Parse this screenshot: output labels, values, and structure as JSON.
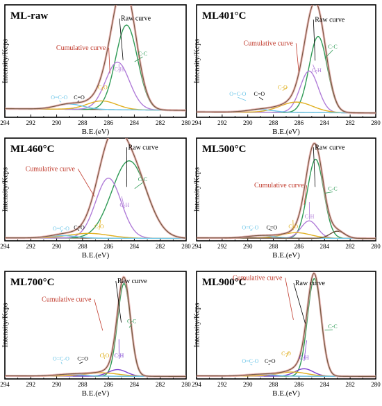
{
  "chart_data": [
    {
      "type": "line",
      "title": "ML-raw",
      "xlabel": "B.E.(eV)",
      "ylabel": "Intensity/Kcps",
      "xlim": [
        294,
        280
      ],
      "x_ticks": [
        "294",
        "292",
        "290",
        "288",
        "286",
        "284",
        "282",
        "280"
      ],
      "background": 8,
      "ymax": 130,
      "components": [
        {
          "name": "C-C",
          "center": 284.6,
          "height": 98,
          "width": 1.2,
          "color": "#2e9a55"
        },
        {
          "name": "C-H",
          "center": 285.3,
          "height": 55,
          "width": 1.3,
          "color": "#b07cd8"
        },
        {
          "name": "C-O",
          "center": 286.5,
          "height": 10,
          "width": 1.6,
          "color": "#e0b020"
        },
        {
          "name": "O=C-O",
          "center": 289.0,
          "height": 6,
          "width": 1.5,
          "color": "#6cc6e8"
        }
      ],
      "annotations": [
        {
          "label": "Raw curve",
          "color": "#000000",
          "main": true
        },
        {
          "label": "Cumulative curve",
          "color": "#c0392b",
          "main": true
        },
        {
          "label": "C-C",
          "color": "#2e9a55"
        },
        {
          "label": "C-H",
          "color": "#b07cd8"
        },
        {
          "label": "C-O",
          "color": "#e0b020"
        },
        {
          "label": "C=O",
          "color": "#000000"
        },
        {
          "label": "O=C-O",
          "color": "#6cc6e8"
        }
      ]
    },
    {
      "type": "line",
      "title": "ML401°C",
      "xlabel": "B.E.(eV)",
      "ylabel": "Intensity/Kcps",
      "xlim": [
        294,
        280
      ],
      "x_ticks": [
        "294",
        "292",
        "290",
        "288",
        "286",
        "284",
        "282",
        "280"
      ],
      "background": 5,
      "ymax": 130,
      "components": [
        {
          "name": "C-C",
          "center": 284.5,
          "height": 88,
          "width": 1.0,
          "color": "#2e9a55"
        },
        {
          "name": "C-H",
          "center": 285.2,
          "height": 48,
          "width": 1.0,
          "color": "#b07cd8"
        },
        {
          "name": "C-O",
          "center": 286.2,
          "height": 12,
          "width": 1.8,
          "color": "#e0b020"
        },
        {
          "name": "O=C-O",
          "center": 289.0,
          "height": 3,
          "width": 1.5,
          "color": "#6cc6e8"
        }
      ],
      "annotations": [
        {
          "label": "Raw curve",
          "color": "#000000",
          "main": true
        },
        {
          "label": "Cumulative curve",
          "color": "#c0392b",
          "main": true
        },
        {
          "label": "C-C",
          "color": "#2e9a55"
        },
        {
          "label": "C-H",
          "color": "#b07cd8"
        },
        {
          "label": "C-O",
          "color": "#e0b020"
        },
        {
          "label": "C=O",
          "color": "#000000"
        },
        {
          "label": "O=C-O",
          "color": "#6cc6e8"
        }
      ]
    },
    {
      "type": "line",
      "title": "ML460°C",
      "xlabel": "B.E.(eV)",
      "ylabel": "Intensity/Kcps",
      "xlim": [
        294,
        280
      ],
      "x_ticks": [
        "294",
        "292",
        "290",
        "288",
        "286",
        "284",
        "282",
        "280"
      ],
      "background": 3,
      "ymax": 130,
      "components": [
        {
          "name": "C-C",
          "center": 284.4,
          "height": 98,
          "width": 1.9,
          "color": "#2e9a55"
        },
        {
          "name": "C-H",
          "center": 286.0,
          "height": 76,
          "width": 1.4,
          "color": "#b07cd8"
        },
        {
          "name": "C-O",
          "center": 287.5,
          "height": 6,
          "width": 2.2,
          "color": "#e0b020"
        },
        {
          "name": "O=C-O",
          "center": 289.5,
          "height": 3,
          "width": 1.5,
          "color": "#6cc6e8"
        }
      ],
      "annotations": [
        {
          "label": "Raw curve",
          "color": "#000000",
          "main": true
        },
        {
          "label": "Cumulative curve",
          "color": "#c0392b",
          "main": true
        },
        {
          "label": "C-C",
          "color": "#2e9a55"
        },
        {
          "label": "C-H",
          "color": "#b07cd8"
        },
        {
          "label": "C-O",
          "color": "#e0b020"
        },
        {
          "label": "C=O",
          "color": "#000000"
        },
        {
          "label": "O=C-O",
          "color": "#6cc6e8"
        }
      ]
    },
    {
      "type": "line",
      "title": "ML500°C",
      "xlabel": "B.E.(eV)",
      "ylabel": "Intensity/Kcps",
      "xlim": [
        294,
        280
      ],
      "x_ticks": [
        "294",
        "292",
        "290",
        "288",
        "286",
        "284",
        "282",
        "280"
      ],
      "background": 3,
      "ymax": 130,
      "components": [
        {
          "name": "C-C",
          "center": 284.7,
          "height": 100,
          "width": 0.9,
          "color": "#2e9a55"
        },
        {
          "name": "C-H",
          "center": 285.2,
          "height": 22,
          "width": 0.9,
          "color": "#b07cd8"
        },
        {
          "name": "C-O",
          "center": 286.2,
          "height": 7,
          "width": 1.6,
          "color": "#e0b020"
        },
        {
          "name": "O=C-O",
          "center": 289.0,
          "height": 3,
          "width": 1.5,
          "color": "#6cc6e8"
        },
        {
          "name": "",
          "center": 283.0,
          "height": 9,
          "width": 0.8,
          "color": "#6b4f3a"
        }
      ],
      "annotations": [
        {
          "label": "Raw curve",
          "color": "#000000",
          "main": true
        },
        {
          "label": "Cumulative curve",
          "color": "#c0392b",
          "main": true
        },
        {
          "label": "C-C",
          "color": "#2e9a55"
        },
        {
          "label": "C-H",
          "color": "#b07cd8"
        },
        {
          "label": "C-O",
          "color": "#e0b020"
        },
        {
          "label": "C=O",
          "color": "#000000"
        },
        {
          "label": "O=C-O",
          "color": "#6cc6e8"
        }
      ]
    },
    {
      "type": "line",
      "title": "ML700°C",
      "xlabel": "B.E.(eV)",
      "ylabel": "Intensity/Kcps",
      "xlim": [
        294,
        280
      ],
      "x_ticks": [
        "294",
        "292",
        "290",
        "288",
        "286",
        "284",
        "282",
        "280"
      ],
      "background": 3,
      "ymax": 130,
      "components": [
        {
          "name": "C-C",
          "center": 284.8,
          "height": 112,
          "width": 0.7,
          "color": "#2e9a55"
        },
        {
          "name": "C-H",
          "center": 285.3,
          "height": 8,
          "width": 1.0,
          "color": "#7b3fd0"
        },
        {
          "name": "C-O",
          "center": 286.5,
          "height": 4,
          "width": 1.8,
          "color": "#e0b020"
        },
        {
          "name": "O=C-O",
          "center": 289.0,
          "height": 2,
          "width": 1.5,
          "color": "#6cc6e8"
        }
      ],
      "annotations": [
        {
          "label": "Raw curve",
          "color": "#000000",
          "main": true
        },
        {
          "label": "Cumulative curve",
          "color": "#c0392b",
          "main": true
        },
        {
          "label": "C-C",
          "color": "#2e9a55"
        },
        {
          "label": "C-H",
          "color": "#7b3fd0"
        },
        {
          "label": "C-O",
          "color": "#e0b020"
        },
        {
          "label": "C=O",
          "color": "#000000"
        },
        {
          "label": "O=C-O",
          "color": "#6cc6e8"
        }
      ]
    },
    {
      "type": "line",
      "title": "ML900°C",
      "xlabel": "B.E.(eV)",
      "ylabel": "Intensity/Kcps",
      "xlim": [
        294,
        280
      ],
      "x_ticks": [
        "294",
        "292",
        "290",
        "288",
        "286",
        "284",
        "282",
        "280"
      ],
      "background": 3,
      "ymax": 130,
      "components": [
        {
          "name": "C-C",
          "center": 284.8,
          "height": 118,
          "width": 0.75,
          "color": "#2e9a55"
        },
        {
          "name": "C-H",
          "center": 285.6,
          "height": 9,
          "width": 1.0,
          "color": "#7b3fd0"
        },
        {
          "name": "C-O",
          "center": 286.5,
          "height": 5,
          "width": 1.6,
          "color": "#e0b020"
        },
        {
          "name": "O=C-O",
          "center": 289.0,
          "height": 2,
          "width": 1.5,
          "color": "#6cc6e8"
        }
      ],
      "annotations": [
        {
          "label": "Raw curve",
          "color": "#000000",
          "main": true
        },
        {
          "label": "Cumulative curve",
          "color": "#c0392b",
          "main": true
        },
        {
          "label": "C-C",
          "color": "#2e9a55"
        },
        {
          "label": "C-H",
          "color": "#7b3fd0"
        },
        {
          "label": "C-O",
          "color": "#e0b020"
        },
        {
          "label": "C=O",
          "color": "#000000"
        },
        {
          "label": "O=C-O",
          "color": "#6cc6e8"
        }
      ]
    }
  ]
}
